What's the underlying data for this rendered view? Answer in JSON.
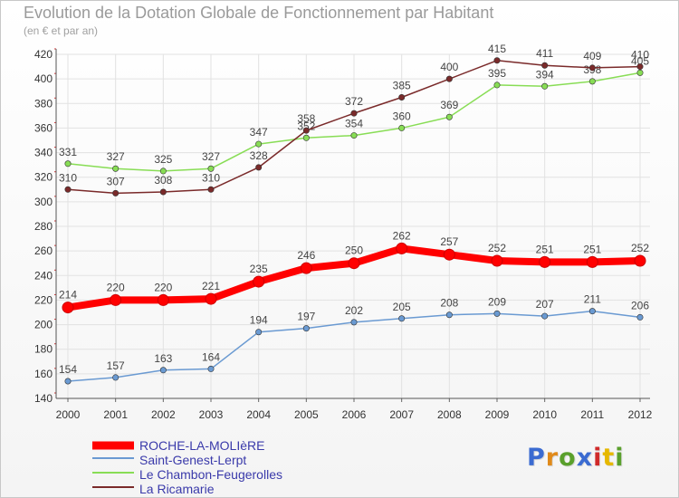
{
  "header": {
    "title": "Evolution de la Dotation Globale de Fonctionnement par Habitant",
    "subtitle": "(en € et par an)"
  },
  "brand": {
    "text": "Proxiti",
    "colors": [
      "#3b6bd1",
      "#e08a1a",
      "#5aa02c",
      "#3b6bd1",
      "#d02a2a",
      "#e6b800",
      "#5aa02c"
    ]
  },
  "chart_data": {
    "type": "line",
    "title": "Evolution de la Dotation Globale de Fonctionnement par Habitant",
    "subtitle": "(en € et par an)",
    "categories": [
      "2000",
      "2001",
      "2002",
      "2003",
      "2004",
      "2005",
      "2006",
      "2007",
      "2008",
      "2009",
      "2010",
      "2011",
      "2012"
    ],
    "ylim": [
      140,
      420
    ],
    "yticks": [
      140,
      160,
      180,
      200,
      220,
      240,
      260,
      280,
      300,
      320,
      340,
      360,
      380,
      400,
      420
    ],
    "grid": true,
    "legend_position": "bottom-left",
    "series": [
      {
        "name": "ROCHE-LA-MOLIèRE",
        "color": "#ff0000",
        "label_color": "#3a3aaa",
        "values": [
          214,
          220,
          220,
          221,
          235,
          246,
          250,
          262,
          257,
          252,
          251,
          251,
          252
        ]
      },
      {
        "name": "Saint-Genest-Lerpt",
        "color": "#6a9ad2",
        "label_color": "#3a3aaa",
        "values": [
          154,
          157,
          163,
          164,
          194,
          197,
          202,
          205,
          208,
          209,
          207,
          211,
          206
        ]
      },
      {
        "name": "Le Chambon-Feugerolles",
        "color": "#88dd55",
        "label_color": "#3a3aaa",
        "values": [
          331,
          327,
          325,
          327,
          347,
          352,
          354,
          360,
          369,
          395,
          394,
          398,
          405
        ]
      },
      {
        "name": "La Ricamarie",
        "color": "#7a2a2a",
        "label_color": "#3a3aaa",
        "values": [
          310,
          307,
          308,
          310,
          328,
          358,
          372,
          385,
          400,
          415,
          411,
          409,
          410
        ]
      }
    ]
  }
}
